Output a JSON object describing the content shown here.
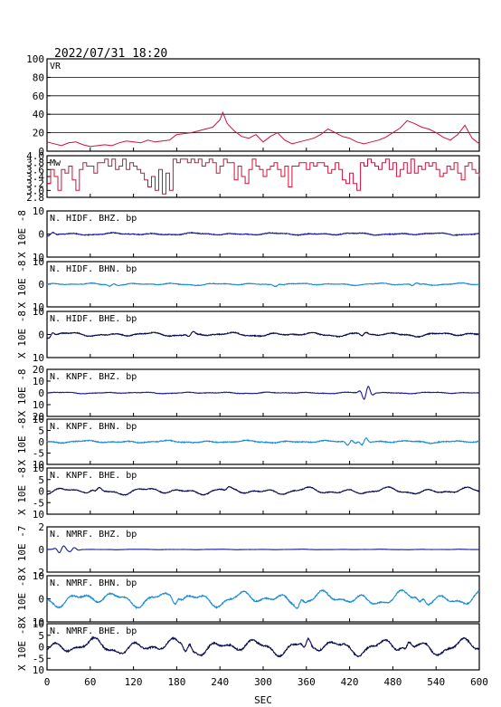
{
  "header": {
    "datetime": "2022/07/31  18:20"
  },
  "chart_data": {
    "type": "line",
    "xlabel": "SEC",
    "xlim": [
      0,
      600
    ],
    "xticks": [
      0,
      60,
      120,
      180,
      240,
      300,
      360,
      420,
      480,
      540,
      600
    ],
    "colors": {
      "vr_mw": "#d0103a",
      "bhz": "#1a1a9c",
      "bhn": "#1a8ad8",
      "bhe": "#0a0a50"
    },
    "panels": [
      {
        "id": "vr",
        "label": "VR",
        "ylabel": "",
        "color": "#d0103a",
        "ylim": [
          0,
          100
        ],
        "yticks": [
          0,
          20,
          40,
          60,
          80,
          100
        ],
        "grid": [
          20,
          40,
          60,
          80
        ],
        "x": [
          0,
          10,
          20,
          30,
          40,
          50,
          60,
          70,
          80,
          90,
          100,
          110,
          120,
          130,
          140,
          150,
          160,
          170,
          180,
          190,
          200,
          210,
          220,
          230,
          240,
          244,
          250,
          260,
          270,
          280,
          290,
          300,
          310,
          320,
          330,
          340,
          350,
          360,
          370,
          380,
          390,
          400,
          410,
          420,
          430,
          440,
          450,
          460,
          470,
          480,
          490,
          500,
          510,
          520,
          530,
          540,
          550,
          560,
          570,
          580,
          590,
          600
        ],
        "y": [
          10,
          8,
          6,
          9,
          10,
          7,
          5,
          6,
          7,
          6,
          9,
          11,
          10,
          9,
          12,
          10,
          11,
          12,
          18,
          19,
          20,
          22,
          24,
          26,
          34,
          42,
          30,
          22,
          16,
          14,
          18,
          10,
          16,
          20,
          12,
          8,
          10,
          12,
          14,
          18,
          24,
          20,
          16,
          14,
          10,
          8,
          10,
          12,
          15,
          20,
          25,
          33,
          30,
          26,
          24,
          20,
          15,
          12,
          18,
          28,
          14,
          8
        ]
      },
      {
        "id": "mw",
        "label": "Mw",
        "ylabel": "",
        "color": "#d0103a",
        "ylim": [
          2.8,
          4.0
        ],
        "yticks": [
          2.8,
          3.0,
          3.2,
          3.4,
          3.6,
          3.8,
          4.0
        ],
        "ytick_labels": [
          "2.8",
          "3.0",
          "3.2",
          "3.4",
          "3.6",
          "3.8",
          "4.0"
        ],
        "x": [
          0,
          5,
          10,
          15,
          20,
          25,
          30,
          35,
          40,
          45,
          50,
          55,
          60,
          65,
          70,
          75,
          80,
          85,
          90,
          95,
          100,
          105,
          110,
          115,
          120,
          125,
          130,
          135,
          140,
          145,
          150,
          155,
          160,
          165,
          170,
          175,
          180,
          185,
          190,
          195,
          200,
          205,
          210,
          215,
          220,
          225,
          230,
          235,
          240,
          245,
          250,
          255,
          260,
          265,
          270,
          275,
          280,
          285,
          290,
          295,
          300,
          305,
          310,
          315,
          320,
          325,
          330,
          335,
          340,
          345,
          350,
          355,
          360,
          365,
          370,
          375,
          380,
          385,
          390,
          395,
          400,
          405,
          410,
          415,
          420,
          425,
          430,
          435,
          440,
          445,
          450,
          455,
          460,
          465,
          470,
          475,
          480,
          485,
          490,
          495,
          500,
          505,
          510,
          515,
          520,
          525,
          530,
          535,
          540,
          545,
          550,
          555,
          560,
          565,
          570,
          575,
          580,
          585,
          590,
          595,
          600
        ],
        "y": [
          3.2,
          3.6,
          3.4,
          3.0,
          3.6,
          3.5,
          3.7,
          3.3,
          3.0,
          3.6,
          3.8,
          3.7,
          3.7,
          3.5,
          3.8,
          3.8,
          3.9,
          3.7,
          3.9,
          3.6,
          3.7,
          3.9,
          3.6,
          3.8,
          3.7,
          3.6,
          3.5,
          3.3,
          3.1,
          3.4,
          3.0,
          3.6,
          2.9,
          3.5,
          3.0,
          3.9,
          3.8,
          3.9,
          3.9,
          3.8,
          3.9,
          3.8,
          3.9,
          3.7,
          3.8,
          3.9,
          3.8,
          3.5,
          3.7,
          3.9,
          3.8,
          3.8,
          3.3,
          3.7,
          3.4,
          3.2,
          3.6,
          3.9,
          3.7,
          3.6,
          3.4,
          3.6,
          3.7,
          3.8,
          3.6,
          3.4,
          3.7,
          3.1,
          3.7,
          3.7,
          3.8,
          3.8,
          3.6,
          3.8,
          3.7,
          3.8,
          3.8,
          3.7,
          3.5,
          3.6,
          3.8,
          3.6,
          3.3,
          3.2,
          3.5,
          3.2,
          3.0,
          3.8,
          3.7,
          3.9,
          3.8,
          3.7,
          3.6,
          3.8,
          3.9,
          3.6,
          3.8,
          3.4,
          3.6,
          3.8,
          3.5,
          3.9,
          3.5,
          3.7,
          3.6,
          3.8,
          3.7,
          3.8,
          3.6,
          3.4,
          3.5,
          3.7,
          3.6,
          3.8,
          3.5,
          3.3,
          3.7,
          3.8,
          3.6,
          3.5,
          3.4
        ]
      },
      {
        "id": "hidf-bhz",
        "label": "N. HIDF. BHZ. bp",
        "ylabel": "X 10E -8",
        "color": "#1a1a9c",
        "ylim": [
          -10,
          10
        ],
        "yticks": [
          -10,
          0,
          10
        ],
        "ytick_labels": [
          "10",
          "0",
          "10"
        ],
        "wave": {
          "amp": 0.45,
          "noise": 0.3,
          "seed": 11,
          "bursts": [
            [
              5,
              0.8
            ]
          ]
        }
      },
      {
        "id": "hidf-bhn",
        "label": "N. HIDF. BHN. bp",
        "ylabel": "X 10E -8",
        "color": "#1a8ad8",
        "ylim": [
          -10,
          10
        ],
        "yticks": [
          -10,
          0,
          10
        ],
        "ytick_labels": [
          "10",
          "0",
          "10"
        ],
        "wave": {
          "amp": 0.45,
          "noise": 0.25,
          "seed": 23,
          "bursts": [
            [
              90,
              0.6
            ],
            [
              320,
              0.5
            ],
            [
              510,
              0.6
            ]
          ]
        }
      },
      {
        "id": "hidf-bhe",
        "label": "N. HIDF. BHE. bp",
        "ylabel": "X 10E -8",
        "color": "#0a0a50",
        "ylim": [
          -10,
          10
        ],
        "yticks": [
          -10,
          0,
          10
        ],
        "ytick_labels": [
          "10",
          "0",
          "10"
        ],
        "wave": {
          "amp": 0.8,
          "noise": 0.35,
          "seed": 37,
          "bursts": [
            [
              5,
              1.2
            ],
            [
              200,
              1.0
            ],
            [
              440,
              0.8
            ]
          ]
        }
      },
      {
        "id": "knpf-bhz",
        "label": "N. KNPF. BHZ. bp",
        "ylabel": "X 10E -8",
        "color": "#1a1a9c",
        "ylim": [
          -20,
          20
        ],
        "yticks": [
          -20,
          -10,
          0,
          10,
          20
        ],
        "ytick_labels": [
          "20",
          "10",
          "0",
          "10",
          "20"
        ],
        "wave": {
          "amp": 0.6,
          "noise": 0.4,
          "seed": 41,
          "bursts": [
            [
              443,
              6.5
            ]
          ]
        }
      },
      {
        "id": "knpf-bhn",
        "label": "N. KNPF. BHN. bp",
        "ylabel": "X 10E -8",
        "color": "#1a8ad8",
        "ylim": [
          -10,
          10
        ],
        "yticks": [
          -10,
          -5,
          0,
          5,
          10
        ],
        "ytick_labels": [
          "10",
          "-5",
          "0",
          "5",
          "10"
        ],
        "wave": {
          "amp": 0.5,
          "noise": 0.35,
          "seed": 53,
          "bursts": [
            [
              420,
              1.3
            ],
            [
              440,
              1.6
            ]
          ]
        }
      },
      {
        "id": "knpf-bhe",
        "label": "N. KNPF. BHE. bp",
        "ylabel": "X 10E -8",
        "color": "#0a0a50",
        "ylim": [
          -10,
          10
        ],
        "yticks": [
          -10,
          -5,
          0,
          5,
          10
        ],
        "ytick_labels": [
          "10",
          "-5",
          "0",
          "5",
          "10"
        ],
        "wave": {
          "amp": 1.4,
          "noise": 0.3,
          "seed": 67,
          "bursts": [
            [
              70,
              0.8
            ],
            [
              250,
              0.6
            ]
          ]
        }
      },
      {
        "id": "nmrf-bhz",
        "label": "N. NMRF. BHZ. bp",
        "ylabel": "X 10E -7",
        "color": "#1a1a9c",
        "ylim": [
          -2,
          2
        ],
        "yticks": [
          -2,
          0,
          2
        ],
        "ytick_labels": [
          "-2",
          "0",
          "2"
        ],
        "wave": {
          "amp": 0.02,
          "noise": 0.01,
          "seed": 71,
          "bursts": [
            [
              20,
              0.35
            ],
            [
              35,
              0.2
            ]
          ]
        }
      },
      {
        "id": "nmrf-bhn",
        "label": "N. NMRF. BHN. bp",
        "ylabel": "X 10E -8",
        "color": "#1a8ad8",
        "ylim": [
          -10,
          10
        ],
        "yticks": [
          -10,
          0,
          10
        ],
        "ytick_labels": [
          "10",
          "0",
          "10"
        ],
        "wave": {
          "amp": 3.0,
          "noise": 0.5,
          "seed": 83,
          "bursts": [
            [
              180,
              1.5
            ],
            [
              350,
              1.5
            ],
            [
              520,
              1.2
            ]
          ]
        }
      },
      {
        "id": "nmrf-bhe",
        "label": "N. NMRF. BHE. bp",
        "ylabel": "X 10E -8",
        "color": "#0a0a50",
        "ylim": [
          -10,
          10
        ],
        "yticks": [
          -10,
          -5,
          0,
          5,
          10
        ],
        "ytick_labels": [
          "10",
          "-5",
          "0",
          "5",
          "10"
        ],
        "wave": {
          "amp": 3.2,
          "noise": 0.6,
          "seed": 97,
          "bursts": [
            [
              195,
              2.0
            ],
            [
              360,
              2.0
            ],
            [
              500,
              1.5
            ]
          ]
        }
      }
    ]
  }
}
